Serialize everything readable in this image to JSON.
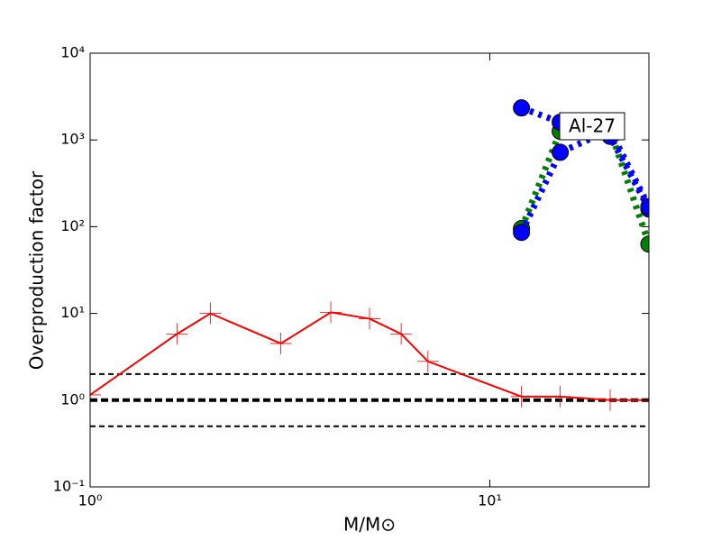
{
  "chart_data": {
    "type": "line",
    "xlabel": "M/M⊙",
    "ylabel": "Overproduction factor",
    "xscale": "log",
    "yscale": "log",
    "xlim": [
      1,
      25
    ],
    "ylim": [
      0.1,
      10000
    ],
    "xticks": [
      {
        "value": 1,
        "label": "10⁰"
      },
      {
        "value": 10,
        "label": "10¹"
      }
    ],
    "yticks": [
      {
        "value": 0.1,
        "label": "10⁻¹"
      },
      {
        "value": 1,
        "label": "10⁰"
      },
      {
        "value": 10,
        "label": "10¹"
      },
      {
        "value": 100,
        "label": "10²"
      },
      {
        "value": 1000,
        "label": "10³"
      },
      {
        "value": 10000,
        "label": "10⁴"
      }
    ],
    "hlines": [
      2,
      1,
      0.5
    ],
    "annotation": "Al-27",
    "series": [
      {
        "color": "#ff0000",
        "linestyle": "solid",
        "marker": "+",
        "x": [
          1,
          1.65,
          2,
          3,
          4,
          5,
          6,
          7,
          12,
          15,
          20,
          25
        ],
        "values": [
          1.15,
          5.8,
          10,
          4.5,
          10.3,
          8.7,
          5.8,
          2.8,
          1.1,
          1.1,
          1.0,
          1.0
        ]
      },
      {
        "color": "#008000",
        "linestyle": "dotted",
        "marker": "o",
        "x": [
          12,
          15,
          20,
          25
        ],
        "values": [
          95,
          1260,
          1300,
          63
        ]
      },
      {
        "color": "#0000ff",
        "linestyle": "dotted",
        "marker": "o",
        "x": [
          12,
          15,
          20,
          25
        ],
        "values": [
          2340,
          1600,
          1100,
          160
        ]
      },
      {
        "color": "#0000ff",
        "linestyle": "dotted",
        "marker": "o",
        "x": [
          12,
          15,
          20,
          25
        ],
        "values": [
          86,
          720,
          1300,
          170
        ]
      }
    ]
  }
}
